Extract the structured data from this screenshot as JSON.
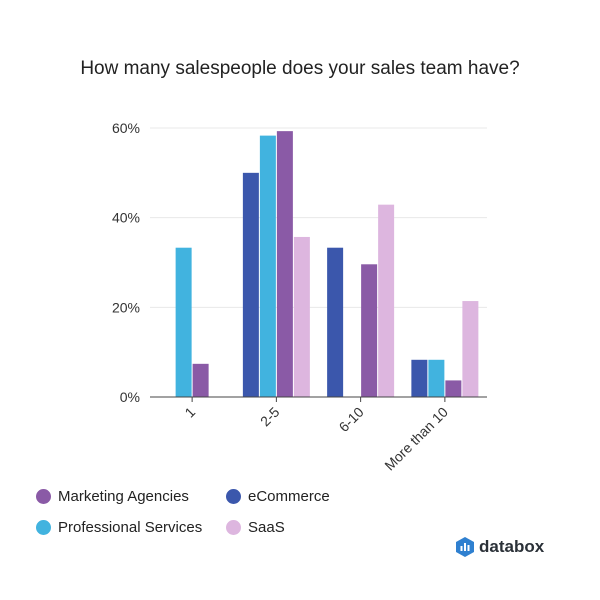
{
  "colors": {
    "marketing": "#8a5aa6",
    "ecommerce": "#3b57ac",
    "professional": "#41b3df",
    "saas": "#ddb6df",
    "grid": "#e8e8e8",
    "axis": "#444444"
  },
  "chart_data": {
    "type": "bar",
    "title": "How many salespeople does your sales team have?",
    "categories": [
      "1",
      "2-5",
      "6-10",
      "More than 10"
    ],
    "series": [
      {
        "name": "eCommerce",
        "color_key": "ecommerce",
        "values": [
          0,
          50,
          33.3,
          8.3
        ]
      },
      {
        "name": "Professional Services",
        "color_key": "professional",
        "values": [
          33.3,
          58.3,
          0,
          8.3
        ]
      },
      {
        "name": "Marketing Agencies",
        "color_key": "marketing",
        "values": [
          7.4,
          59.3,
          29.6,
          3.7
        ]
      },
      {
        "name": "SaaS",
        "color_key": "saas",
        "values": [
          0,
          35.7,
          42.9,
          21.4
        ]
      }
    ],
    "yticks": [
      "0%",
      "20%",
      "40%",
      "60%"
    ],
    "ylim": [
      0,
      60
    ],
    "xlabel": "",
    "ylabel": "",
    "grid": true,
    "legend_position": "bottom-left"
  },
  "legend": [
    {
      "label": "Marketing Agencies",
      "color_key": "marketing"
    },
    {
      "label": "eCommerce",
      "color_key": "ecommerce"
    },
    {
      "label": "Professional Services",
      "color_key": "professional"
    },
    {
      "label": "SaaS",
      "color_key": "saas"
    }
  ],
  "brand": {
    "name": "databox",
    "icon": "databox-logo-icon"
  }
}
